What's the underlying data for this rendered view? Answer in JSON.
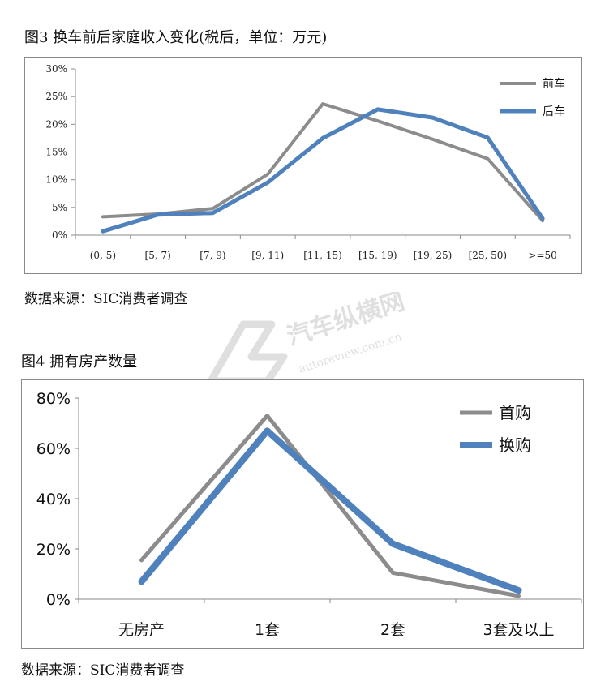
{
  "watermark": {
    "brand": "汽车纵横网",
    "url": "autoreview.com.cn"
  },
  "chart_data": [
    {
      "type": "line",
      "title": "图3  换车前后家庭收入变化(税后，单位：万元)",
      "source": "数据来源：SIC消费者调查",
      "categories": [
        "(0, 5)",
        "[5, 7)",
        "[7, 9)",
        "[9, 11)",
        "[11, 15)",
        "[15, 19)",
        "[19, 25)",
        "[25, 50)",
        ">=50"
      ],
      "yticks": [
        "0%",
        "5%",
        "10%",
        "15%",
        "20%",
        "25%",
        "30%"
      ],
      "ylim": [
        0,
        30
      ],
      "legend_position": "top-right",
      "grid": false,
      "series": [
        {
          "name": "前车",
          "color": "#8c8c8c",
          "values": [
            3.3,
            3.8,
            4.8,
            11.0,
            23.7,
            20.6,
            17.3,
            13.8,
            2.6
          ]
        },
        {
          "name": "后车",
          "color": "#4f81bd",
          "values": [
            0.7,
            3.7,
            4.0,
            9.5,
            17.5,
            22.7,
            21.2,
            17.6,
            3.0
          ]
        }
      ]
    },
    {
      "type": "line",
      "title": "图4  拥有房产数量",
      "source": "数据来源：SIC消费者调查",
      "categories": [
        "无房产",
        "1套",
        "2套",
        "3套及以上"
      ],
      "yticks": [
        "0%",
        "20%",
        "40%",
        "60%",
        "80%"
      ],
      "ylim": [
        0,
        80
      ],
      "legend_position": "top-right",
      "grid": false,
      "series": [
        {
          "name": "首购",
          "color": "#8c8c8c",
          "values": [
            15.5,
            73.0,
            10.5,
            1.3
          ]
        },
        {
          "name": "换购",
          "color": "#4f81bd",
          "values": [
            7.0,
            67.0,
            22.0,
            3.5
          ]
        }
      ]
    }
  ]
}
